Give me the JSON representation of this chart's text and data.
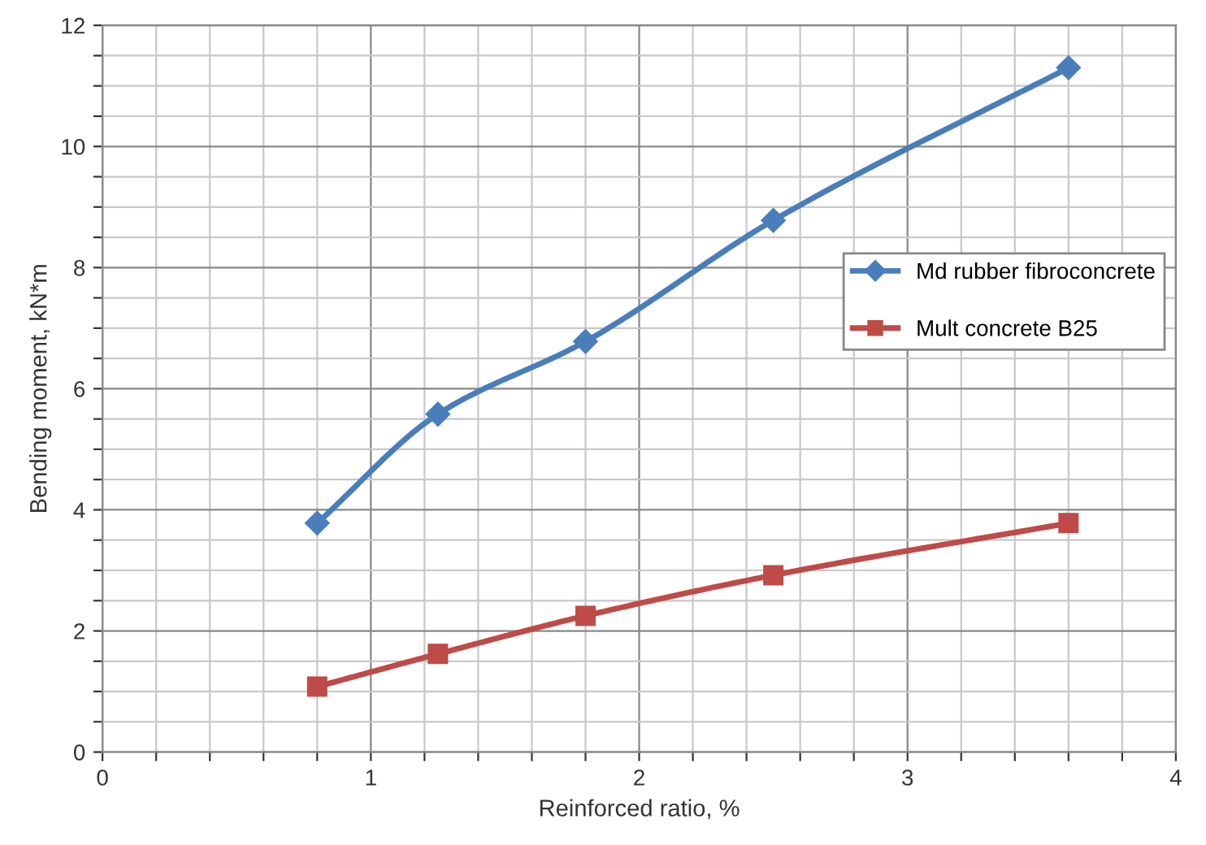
{
  "chart_data": {
    "type": "line",
    "xlabel": "Reinforced ratio, %",
    "ylabel": "Bending moment, kN*m",
    "xlim": [
      0,
      4
    ],
    "ylim": [
      0,
      12
    ],
    "xticks": [
      0,
      {
        "value": 0.2,
        "label": null
      },
      {
        "value": 0.4,
        "label": null
      },
      {
        "value": 0.6,
        "label": null
      },
      {
        "value": 0.8,
        "label": null
      },
      1,
      {
        "value": 1.2,
        "label": null
      },
      {
        "value": 1.4,
        "label": null
      },
      {
        "value": 1.6,
        "label": null
      },
      {
        "value": 1.8,
        "label": null
      },
      2,
      {
        "value": 2.2,
        "label": null
      },
      {
        "value": 2.4,
        "label": null
      },
      {
        "value": 2.6,
        "label": null
      },
      {
        "value": 2.8,
        "label": null
      },
      3,
      {
        "value": 3.2,
        "label": null
      },
      {
        "value": 3.4,
        "label": null
      },
      {
        "value": 3.6,
        "label": null
      },
      {
        "value": 3.8,
        "label": null
      },
      4
    ],
    "yticks": [
      0,
      {
        "value": 0.5,
        "label": null
      },
      {
        "value": 1,
        "label": null
      },
      {
        "value": 1.5,
        "label": null
      },
      2,
      {
        "value": 2.5,
        "label": null
      },
      {
        "value": 3,
        "label": null
      },
      {
        "value": 3.5,
        "label": null
      },
      4,
      {
        "value": 4.5,
        "label": null
      },
      {
        "value": 5,
        "label": null
      },
      {
        "value": 5.5,
        "label": null
      },
      6,
      {
        "value": 6.5,
        "label": null
      },
      {
        "value": 7,
        "label": null
      },
      {
        "value": 7.5,
        "label": null
      },
      8,
      {
        "value": 8.5,
        "label": null
      },
      {
        "value": 9,
        "label": null
      },
      {
        "value": 9.5,
        "label": null
      },
      10,
      {
        "value": 10.5,
        "label": null
      },
      {
        "value": 11,
        "label": null
      },
      {
        "value": 11.5,
        "label": null
      },
      12
    ],
    "grid": true,
    "legend": "right",
    "line_style": "solid",
    "series": [
      {
        "name": "Md rubber fibroconcrete",
        "color": "#4a7ebb",
        "marker": "diamond",
        "x": [
          0.8,
          1.25,
          1.8,
          2.5,
          3.6
        ],
        "values": [
          3.78,
          5.58,
          6.78,
          8.78,
          11.3
        ]
      },
      {
        "name": "Mult concrete B25",
        "color": "#be4b48",
        "marker": "square",
        "x": [
          0.8,
          1.25,
          1.8,
          2.5,
          3.6
        ],
        "values": [
          1.08,
          1.62,
          2.25,
          2.92,
          3.78
        ]
      }
    ]
  }
}
